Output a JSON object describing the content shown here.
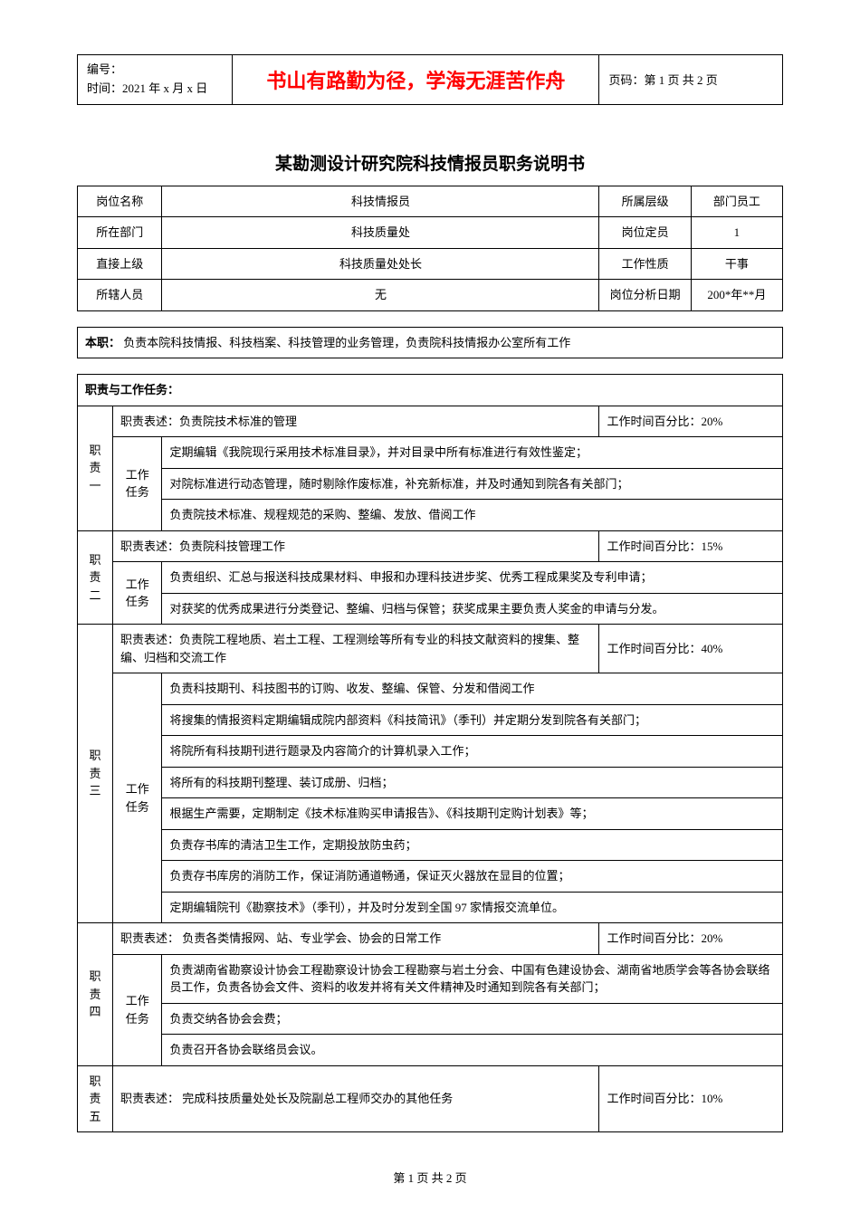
{
  "header": {
    "id_label": "编号：",
    "date_label": "时间：2021 年 x 月 x 日",
    "motto": "书山有路勤为径，学海无涯苦作舟",
    "page_label": "页码：第 1 页 共 2 页"
  },
  "title": "某勘测设计研究院科技情报员职务说明书",
  "info": {
    "r1c1_label": "岗位名称",
    "r1c1_value": "科技情报员",
    "r1c2_label": "所属层级",
    "r1c2_value": "部门员工",
    "r2c1_label": "所在部门",
    "r2c1_value": "科技质量处",
    "r2c2_label": "岗位定员",
    "r2c2_value": "1",
    "r3c1_label": "直接上级",
    "r3c1_value": "科技质量处处长",
    "r3c2_label": "工作性质",
    "r3c2_value": "干事",
    "r4c1_label": "所辖人员",
    "r4c1_value": "无",
    "r4c2_label": "岗位分析日期",
    "r4c2_value": "200*年**月"
  },
  "main_duty": {
    "label": "本职：",
    "text": "负责本院科技情报、科技档案、科技管理的业务管理，负责院科技情报办公室所有工作"
  },
  "section_header": "职责与工作任务：",
  "duties": {
    "d1": {
      "name": "职责一",
      "desc_label": "职责表述：",
      "desc": "负责院技术标准的管理",
      "time": "工作时间百分比：20%",
      "task_label": "工作任务",
      "tasks": [
        "定期编辑《我院现行采用技术标准目录》，并对目录中所有标准进行有效性鉴定；",
        "对院标准进行动态管理，随时剔除作废标准，补充新标准，并及时通知到院各有关部门；",
        "负责院技术标准、规程规范的采购、整编、发放、借阅工作"
      ]
    },
    "d2": {
      "name": "职责二",
      "desc_label": "职责表述：",
      "desc": "负责院科技管理工作",
      "time": "工作时间百分比：15%",
      "task_label": "工作任务",
      "tasks": [
        "负责组织、汇总与报送科技成果材料、申报和办理科技进步奖、优秀工程成果奖及专利申请；",
        "对获奖的优秀成果进行分类登记、整编、归档与保管；获奖成果主要负责人奖金的申请与分发。"
      ]
    },
    "d3": {
      "name": "职责三",
      "desc_label": "职责表述：",
      "desc": "负责院工程地质、岩土工程、工程测绘等所有专业的科技文献资料的搜集、整编、归档和交流工作",
      "time": "工作时间百分比：40%",
      "task_label": "工作任务",
      "tasks": [
        "负责科技期刊、科技图书的订购、收发、整编、保管、分发和借阅工作",
        "将搜集的情报资料定期编辑成院内部资料《科技简讯》（季刊）并定期分发到院各有关部门；",
        "将院所有科技期刊进行题录及内容简介的计算机录入工作；",
        "将所有的科技期刊整理、装订成册、归档；",
        "根据生产需要，定期制定《技术标准购买申请报告》、《科技期刊定购计划表》等；",
        "负责存书库的清洁卫生工作，定期投放防虫药；",
        "负责存书库房的消防工作，保证消防通道畅通，保证灭火器放在显目的位置；",
        "定期编辑院刊《勘察技术》（季刊），并及时分发到全国 97 家情报交流单位。"
      ]
    },
    "d4": {
      "name": "职责四",
      "desc_label": "职责表述：",
      "desc": " 负责各类情报网、站、专业学会、协会的日常工作",
      "time": "工作时间百分比：20%",
      "task_label": "工作任务",
      "tasks": [
        "负责湖南省勘察设计协会工程勘察设计协会工程勘察与岩土分会、中国有色建设协会、湖南省地质学会等各协会联络员工作，负责各协会文件、资料的收发并将有关文件精神及时通知到院各有关部门；",
        "负责交纳各协会会费；",
        "负责召开各协会联络员会议。"
      ]
    },
    "d5": {
      "name": "职责五",
      "desc_label": "职责表述：",
      "desc": " 完成科技质量处处长及院副总工程师交办的其他任务",
      "time": "工作时间百分比：10%"
    }
  },
  "footer": "第 1 页 共 2 页"
}
